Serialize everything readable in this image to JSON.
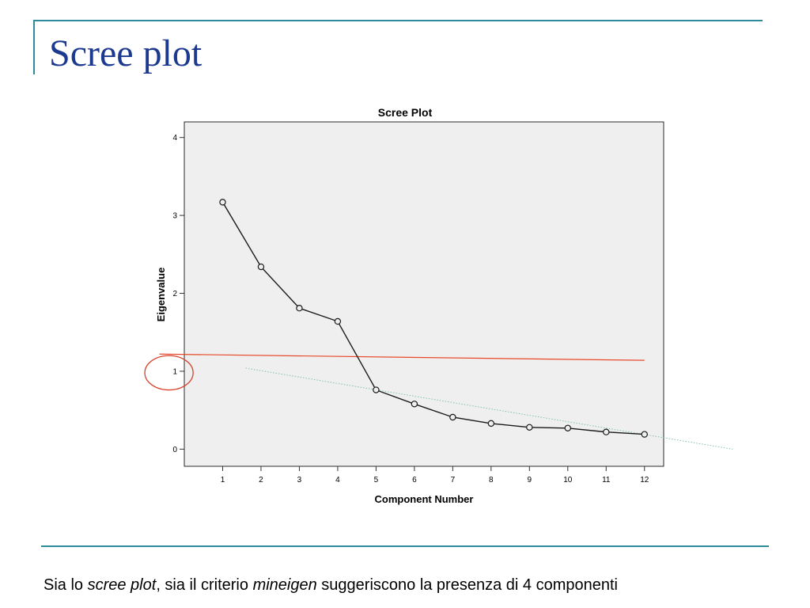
{
  "slide": {
    "title": "Scree plot",
    "caption": {
      "t1": "Sia lo ",
      "t2": "scree plot",
      "t3": ", sia il criterio ",
      "t4": "mineigen",
      "t5": " suggeriscono la presenza di 4 componenti"
    }
  },
  "colors": {
    "accent": "#2e8b9a",
    "title": "#1b3a8f",
    "plot_background": "#efefef",
    "series": "#1a1a1a",
    "threshold_line": "#e8492a",
    "trend_line": "#7fc0b3",
    "annotation_circle": "#d9412b"
  },
  "chart_data": {
    "type": "line",
    "title": "Scree Plot",
    "xlabel": "Component Number",
    "ylabel": "Eigenvalue",
    "x": [
      1,
      2,
      3,
      4,
      5,
      6,
      7,
      8,
      9,
      10,
      11,
      12
    ],
    "xticks": [
      "1",
      "2",
      "3",
      "4",
      "5",
      "6",
      "7",
      "8",
      "9",
      "10",
      "11",
      "12"
    ],
    "yticks": [
      "0",
      "1",
      "2",
      "3",
      "4"
    ],
    "series": [
      {
        "values": [
          3.17,
          2.34,
          1.81,
          1.64,
          0.76,
          0.58,
          0.41,
          0.33,
          0.28,
          0.27,
          0.22,
          0.19
        ]
      }
    ],
    "xlim": [
      0,
      12.5
    ],
    "ylim": [
      -0.22,
      4.2
    ],
    "grid": false,
    "markers": "open-circle",
    "annotations": [
      {
        "type": "line",
        "from": [
          -0.65,
          1.22
        ],
        "to": [
          12,
          1.14
        ],
        "color": "#e8492a"
      },
      {
        "type": "dotted-line",
        "from": [
          1.6,
          1.04
        ],
        "to": [
          14.3,
          0.0
        ],
        "color": "#7fc0b3"
      },
      {
        "type": "ellipse",
        "center": [
          -0.4,
          0.98
        ],
        "rx": 0.63,
        "ry": 0.22,
        "color": "#d9412b"
      }
    ]
  }
}
